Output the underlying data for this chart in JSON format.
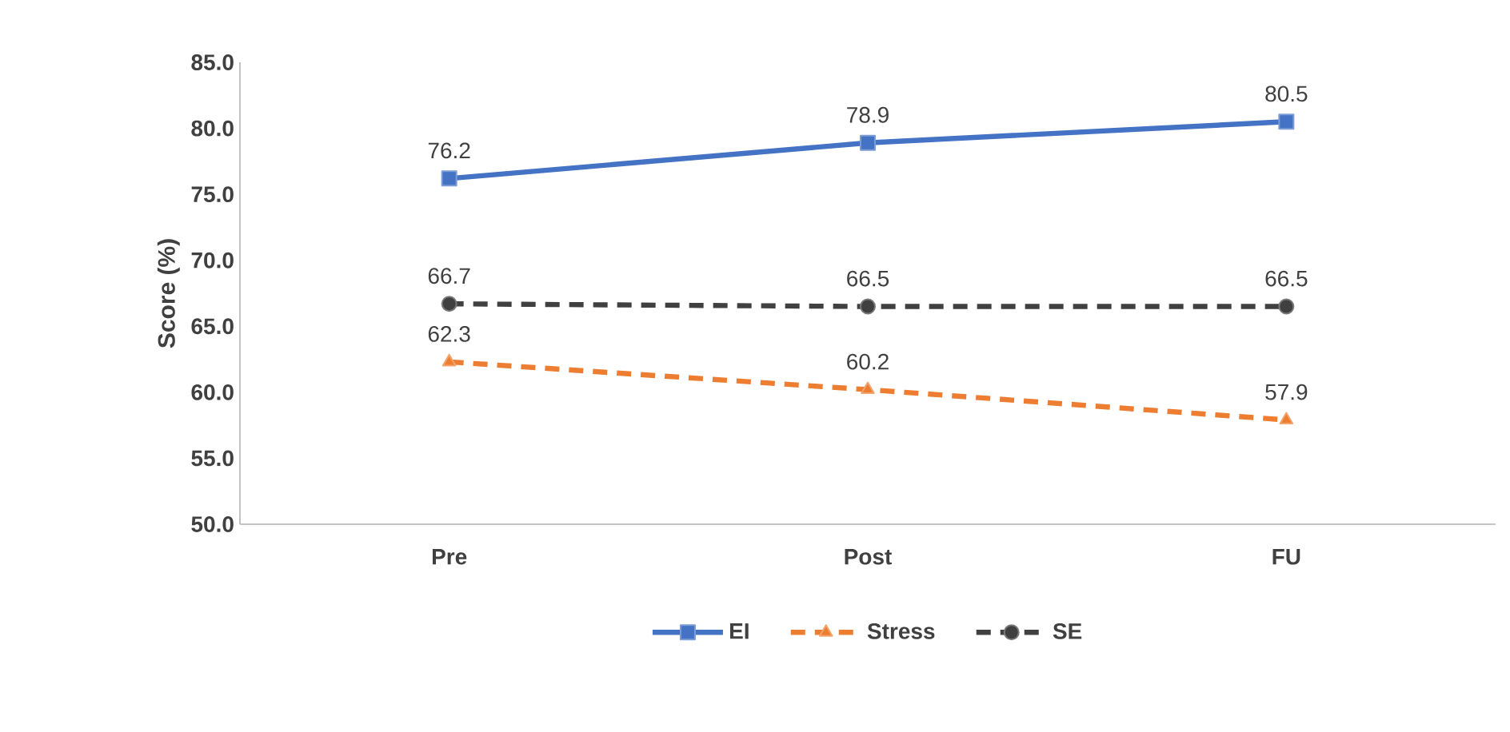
{
  "chart_data": {
    "type": "line",
    "ylabel": "Score (%)",
    "categories": [
      "Pre",
      "Post",
      "FU"
    ],
    "series": [
      {
        "name": "EI",
        "color": "#4472c4",
        "values": [
          76.2,
          78.9,
          80.5
        ],
        "marker": "square",
        "line_style": "solid"
      },
      {
        "name": "Stress",
        "color": "#ed7d31",
        "values": [
          62.3,
          60.2,
          57.9
        ],
        "marker": "triangle",
        "line_style": "dashed"
      },
      {
        "name": "SE",
        "color": "#404040",
        "values": [
          66.7,
          66.5,
          66.5
        ],
        "marker": "circle",
        "line_style": "dashed"
      }
    ],
    "ylim": [
      50,
      85
    ],
    "yticks": [
      {
        "value": 50,
        "label": "50.0"
      },
      {
        "value": 55,
        "label": "55.0"
      },
      {
        "value": 60,
        "label": "60.0"
      },
      {
        "value": 65,
        "label": "65.0"
      },
      {
        "value": 70,
        "label": "70.0"
      },
      {
        "value": 75,
        "label": "75.0"
      },
      {
        "value": 80,
        "label": "80.0"
      },
      {
        "value": 85,
        "label": "85.0"
      }
    ],
    "grid": false,
    "legend": "bottom",
    "data_labels": true
  }
}
